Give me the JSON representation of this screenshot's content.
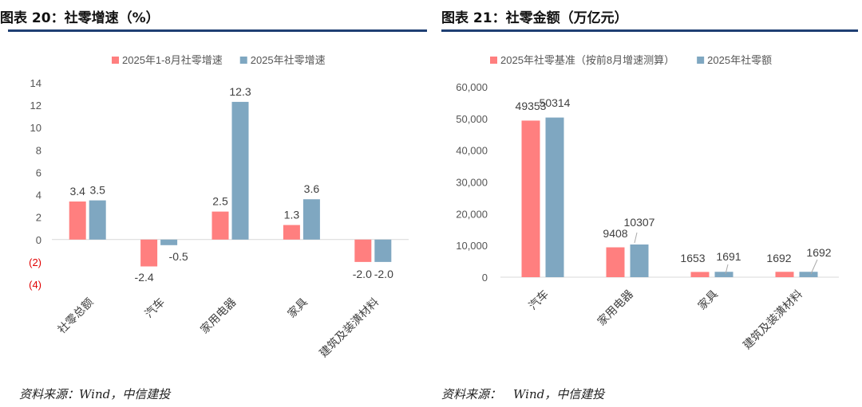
{
  "left": {
    "title": "图表 20：社零增速（%）",
    "source": "资料来源：Wind，中信建投",
    "chart_data": {
      "type": "bar",
      "categories": [
        "社零总额",
        "汽车",
        "家用电器",
        "家具",
        "建筑及装潢材料"
      ],
      "series": [
        {
          "name": "2025年1-8月社零增速",
          "values": [
            3.4,
            -2.4,
            2.5,
            1.3,
            -2.0
          ],
          "labels": [
            "3.4",
            "-2.4",
            "2.5",
            "1.3",
            "-2.0"
          ],
          "color": "#ff7f7f"
        },
        {
          "name": "2025年社零增速",
          "values": [
            3.5,
            -0.5,
            12.3,
            3.6,
            -2.0
          ],
          "labels": [
            "3.5",
            "-0.5",
            "12.3",
            "3.6",
            "-2.0"
          ],
          "color": "#7fa7c1"
        }
      ],
      "ylim": [
        -4,
        14
      ],
      "yticks": [
        14,
        12,
        10,
        8,
        6,
        4,
        2,
        0,
        -2,
        -4
      ],
      "ytick_labels": [
        "14",
        "12",
        "10",
        "8",
        "6",
        "4",
        "2",
        "0",
        "(2)",
        "(4)"
      ],
      "negative_tick_color": "#e00000",
      "legend_position": "top-center",
      "grid": false,
      "title": "",
      "xlabel": "",
      "ylabel": ""
    }
  },
  "right": {
    "title": "图表 21：社零金额（万亿元）",
    "source": "资料来源：　Wind，中信建投",
    "chart_data": {
      "type": "bar",
      "categories": [
        "汽车",
        "家用电器",
        "家具",
        "建筑及装潢材料"
      ],
      "series": [
        {
          "name": "2025年社零基准（按前8月增速测算）",
          "values": [
            49353,
            9408,
            1653,
            1692
          ],
          "labels": [
            "49353",
            "9408",
            "1653",
            "1692"
          ],
          "color": "#ff7f7f"
        },
        {
          "name": "2025年社零额",
          "values": [
            50314,
            10307,
            1691,
            1692
          ],
          "labels": [
            "50314",
            "10307",
            "1691",
            "1692"
          ],
          "color": "#7fa7c1"
        }
      ],
      "ylim": [
        0,
        60000
      ],
      "yticks": [
        60000,
        50000,
        40000,
        30000,
        20000,
        10000,
        0
      ],
      "ytick_labels": [
        "60,000",
        "50,000",
        "40,000",
        "30,000",
        "20,000",
        "10,000",
        "0"
      ],
      "legend_position": "top-center",
      "grid": false,
      "title": "",
      "xlabel": "",
      "ylabel": ""
    }
  }
}
